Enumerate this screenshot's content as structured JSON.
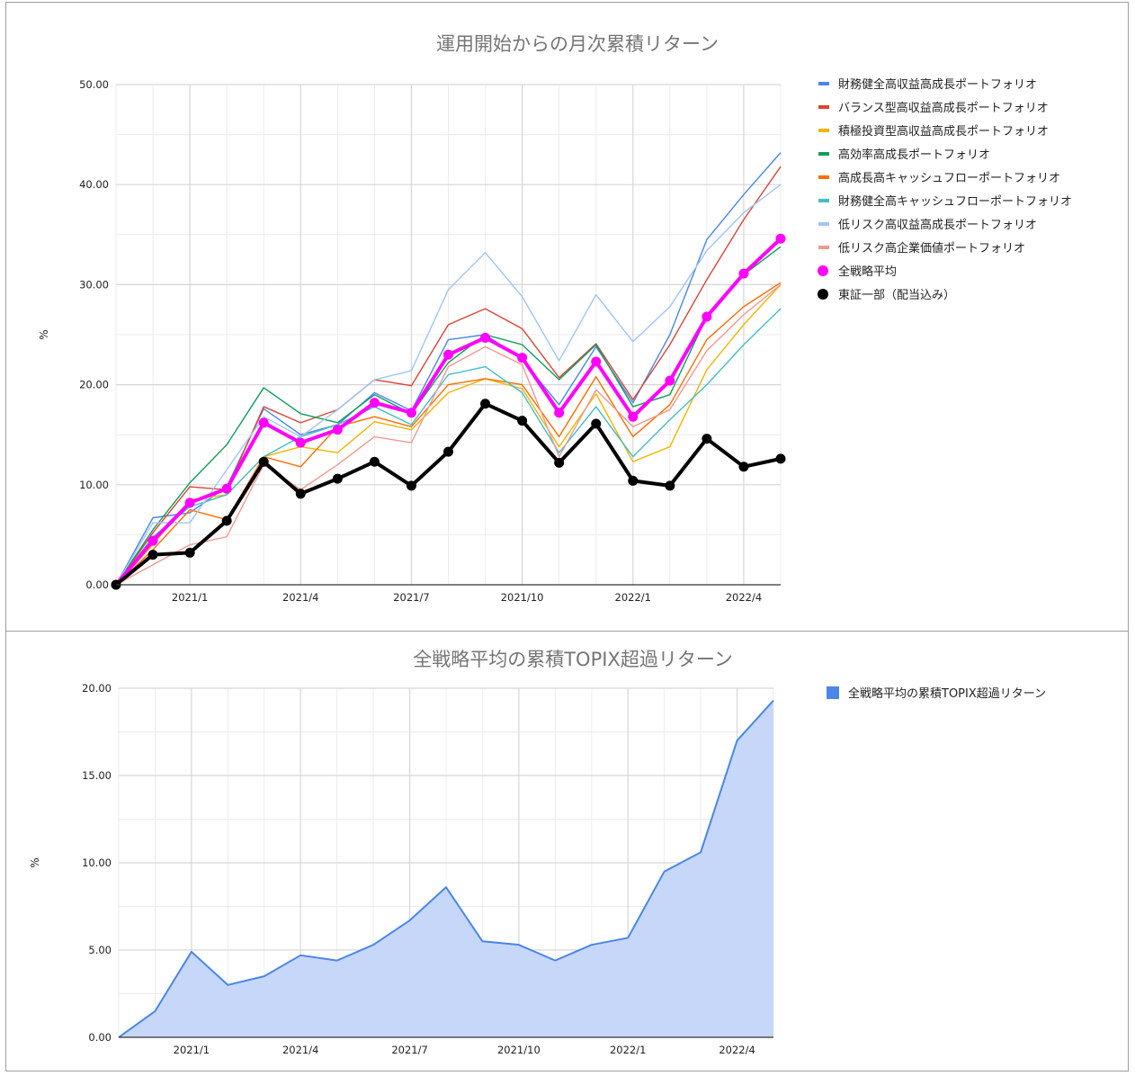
{
  "chart_data": [
    {
      "type": "line",
      "title": "運用開始からの月次累積リターン",
      "ylabel": "%",
      "ylim": [
        0,
        50
      ],
      "yticks": [
        "0.00",
        "10.00",
        "20.00",
        "30.00",
        "40.00",
        "50.00"
      ],
      "xticks": [
        {
          "index": 2,
          "label": "2021/1"
        },
        {
          "index": 5,
          "label": "2021/4"
        },
        {
          "index": 8,
          "label": "2021/7"
        },
        {
          "index": 11,
          "label": "2021/10"
        },
        {
          "index": 14,
          "label": "2022/1"
        },
        {
          "index": 17,
          "label": "2022/4"
        }
      ],
      "grid": true,
      "legend_position": "right",
      "series": [
        {
          "name": "財務健全高収益高成長ポートフォリオ",
          "color": "#4a86e8",
          "width": 1.4,
          "values": [
            0,
            6.7,
            7.2,
            9.8,
            17.6,
            15.0,
            16.0,
            19.2,
            17.4,
            24.5,
            25.0,
            22.5,
            18.0,
            23.8,
            18.2,
            25.0,
            34.5,
            39.0,
            43.2
          ]
        },
        {
          "name": "バランス型高収益高成長ポートフォリオ",
          "color": "#db4437",
          "width": 1.4,
          "values": [
            0,
            5.2,
            9.8,
            9.5,
            17.8,
            16.2,
            17.5,
            20.5,
            19.9,
            26.0,
            27.6,
            25.6,
            20.7,
            24.1,
            18.5,
            24.0,
            30.5,
            36.5,
            41.8
          ]
        },
        {
          "name": "積極投資型高収益高成長ポートフォリオ",
          "color": "#f4b400",
          "width": 1.4,
          "values": [
            0,
            4.0,
            8.5,
            9.0,
            12.8,
            13.8,
            13.2,
            16.3,
            15.5,
            19.2,
            20.6,
            19.6,
            13.8,
            19.1,
            12.3,
            13.8,
            21.5,
            26.0,
            30.0
          ]
        },
        {
          "name": "高効率高成長ポートフォリオ",
          "color": "#0f9d58",
          "width": 1.4,
          "values": [
            0,
            5.5,
            10.2,
            14.0,
            19.7,
            17.1,
            16.2,
            19.0,
            17.1,
            22.2,
            25.0,
            24.0,
            20.5,
            24.0,
            17.8,
            19.0,
            26.8,
            31.0,
            33.8
          ]
        },
        {
          "name": "高成長高キャッシュフローポートフォリオ",
          "color": "#ff6d00",
          "width": 1.4,
          "values": [
            0,
            3.5,
            7.5,
            6.5,
            12.8,
            11.8,
            15.8,
            16.8,
            15.8,
            20.0,
            20.6,
            20.0,
            14.8,
            20.8,
            14.8,
            18.0,
            24.5,
            27.8,
            30.2
          ]
        },
        {
          "name": "財務健全高キャッシュフローポートフォリオ",
          "color": "#46bdc6",
          "width": 1.4,
          "values": [
            0,
            4.8,
            7.8,
            9.0,
            12.8,
            14.8,
            16.0,
            17.8,
            16.0,
            21.0,
            21.8,
            19.2,
            13.2,
            17.8,
            12.8,
            16.5,
            20.0,
            24.0,
            27.6
          ]
        },
        {
          "name": "低リスク高収益高成長ポートフォリオ",
          "color": "#9fc5f8",
          "width": 1.4,
          "values": [
            0,
            6.2,
            6.2,
            11.5,
            16.8,
            14.8,
            17.5,
            20.5,
            21.4,
            29.5,
            33.2,
            28.8,
            22.4,
            29.0,
            24.3,
            27.8,
            33.4,
            37.2,
            40.0
          ]
        },
        {
          "name": "低リスク高企業価値ポートフォリオ",
          "color": "#f19990",
          "width": 1.4,
          "values": [
            0,
            2.0,
            4.0,
            4.8,
            12.0,
            9.5,
            12.0,
            14.8,
            14.2,
            21.8,
            23.8,
            22.0,
            12.8,
            19.5,
            15.8,
            17.5,
            23.4,
            27.0,
            30.0
          ]
        },
        {
          "name": "全戦略平均",
          "color": "#ff00ff",
          "width": 4,
          "markers": true,
          "values": [
            0,
            4.4,
            8.2,
            9.6,
            16.2,
            14.2,
            15.5,
            18.2,
            17.2,
            23.0,
            24.7,
            22.7,
            17.2,
            22.3,
            16.8,
            20.4,
            26.8,
            31.1,
            34.6
          ]
        },
        {
          "name": "東証一部（配当込み）",
          "color": "#000000",
          "width": 4,
          "markers": true,
          "values": [
            0,
            3.0,
            3.2,
            6.4,
            12.3,
            9.1,
            10.6,
            12.3,
            9.9,
            13.3,
            18.1,
            16.4,
            12.2,
            16.1,
            10.4,
            9.9,
            14.6,
            11.8,
            12.6
          ]
        }
      ]
    },
    {
      "type": "area",
      "title": "全戦略平均の累積TOPIX超過リターン",
      "ylabel": "%",
      "ylim": [
        0,
        20
      ],
      "yticks": [
        "0.00",
        "5.00",
        "10.00",
        "15.00",
        "20.00"
      ],
      "xticks": [
        {
          "index": 2,
          "label": "2021/1"
        },
        {
          "index": 5,
          "label": "2021/4"
        },
        {
          "index": 8,
          "label": "2021/7"
        },
        {
          "index": 11,
          "label": "2021/10"
        },
        {
          "index": 14,
          "label": "2022/1"
        },
        {
          "index": 17,
          "label": "2022/4"
        }
      ],
      "grid": true,
      "legend_position": "right",
      "series": [
        {
          "name": "全戦略平均の累積TOPIX超過リターン",
          "color": "#4a86e8",
          "fill": "#c6d7f9",
          "values": [
            0,
            1.5,
            4.9,
            3.0,
            3.5,
            4.7,
            4.4,
            5.3,
            6.7,
            8.6,
            5.5,
            5.3,
            4.4,
            5.3,
            5.7,
            9.5,
            10.6,
            17.0,
            19.3
          ]
        }
      ]
    }
  ]
}
